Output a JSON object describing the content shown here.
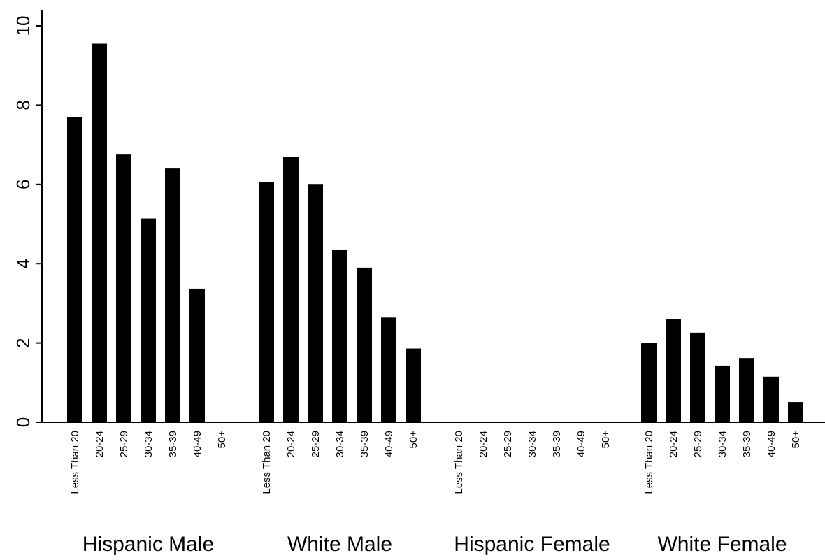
{
  "chart_data": {
    "type": "bar",
    "title": "",
    "xlabel": "",
    "ylabel": "",
    "ylim": [
      0,
      10.4
    ],
    "y_ticks": [
      "0",
      "2",
      "4",
      "6",
      "8",
      "10"
    ],
    "y_tick_values": [
      0,
      2,
      4,
      6,
      8,
      10
    ],
    "grid": false,
    "legend": "none",
    "bar_color": "#000000",
    "categories": [
      "Less Than 20",
      "20-24",
      "25-29",
      "30-34",
      "35-39",
      "40-49",
      "50+"
    ],
    "groups": [
      {
        "label": "Hispanic Male",
        "values": [
          7.7,
          9.55,
          6.77,
          5.14,
          6.4,
          3.37,
          0
        ]
      },
      {
        "label": "White Male",
        "values": [
          6.05,
          6.69,
          6.01,
          4.35,
          3.9,
          2.64,
          1.86
        ]
      },
      {
        "label": "Hispanic Female",
        "values": [
          0,
          0,
          0,
          0,
          0,
          0,
          0
        ]
      },
      {
        "label": "White Female",
        "values": [
          2.01,
          2.61,
          2.26,
          1.43,
          1.62,
          1.15,
          0.51
        ]
      }
    ]
  }
}
